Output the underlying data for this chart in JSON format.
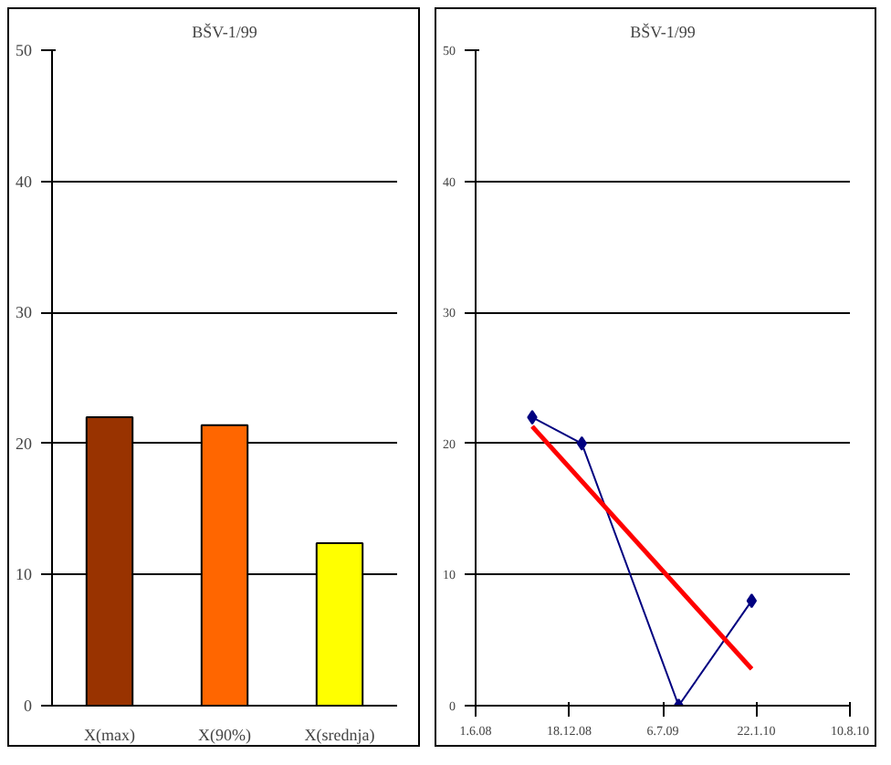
{
  "chart_data": [
    {
      "type": "bar",
      "title": "BŠV-1/99",
      "categories": [
        "X(max)",
        "X(90%)",
        "X(srednja)"
      ],
      "values": [
        22,
        21.4,
        12.4
      ],
      "colors": [
        "#993300",
        "#ff6600",
        "#ffff00"
      ],
      "ylim": [
        0,
        50
      ],
      "yticks": [
        0,
        10,
        20,
        30,
        40,
        50
      ],
      "grid": "y"
    },
    {
      "type": "line",
      "title": "BŠV-1/99",
      "x": [
        "2008-09-30",
        "2009-01-14",
        "2009-08-09",
        "2010-01-12"
      ],
      "series": [
        {
          "color": "#000080",
          "values": [
            22,
            20,
            0,
            8
          ],
          "marker": "diamond"
        },
        {
          "type": "line",
          "x": [
            "2008-09-30",
            "2010-01-12"
          ],
          "color": "#ff0000",
          "values": [
            21.3,
            2.8
          ],
          "marker": "none"
        }
      ],
      "xlim": [
        "2008-06-01",
        "2010-08-10"
      ],
      "xticks": [
        {
          "value": "2008-06-01",
          "label": "1.6.08"
        },
        {
          "value": "2008-12-18",
          "label": "18.12.08"
        },
        {
          "value": "2009-07-06",
          "label": "6.7.09"
        },
        {
          "value": "2010-01-22",
          "label": "22.1.10"
        },
        {
          "value": "2010-08-10",
          "label": "10.8.10"
        }
      ],
      "ylim": [
        0,
        50
      ],
      "yticks": [
        0,
        10,
        20,
        30,
        40,
        50
      ],
      "grid": "y"
    }
  ]
}
